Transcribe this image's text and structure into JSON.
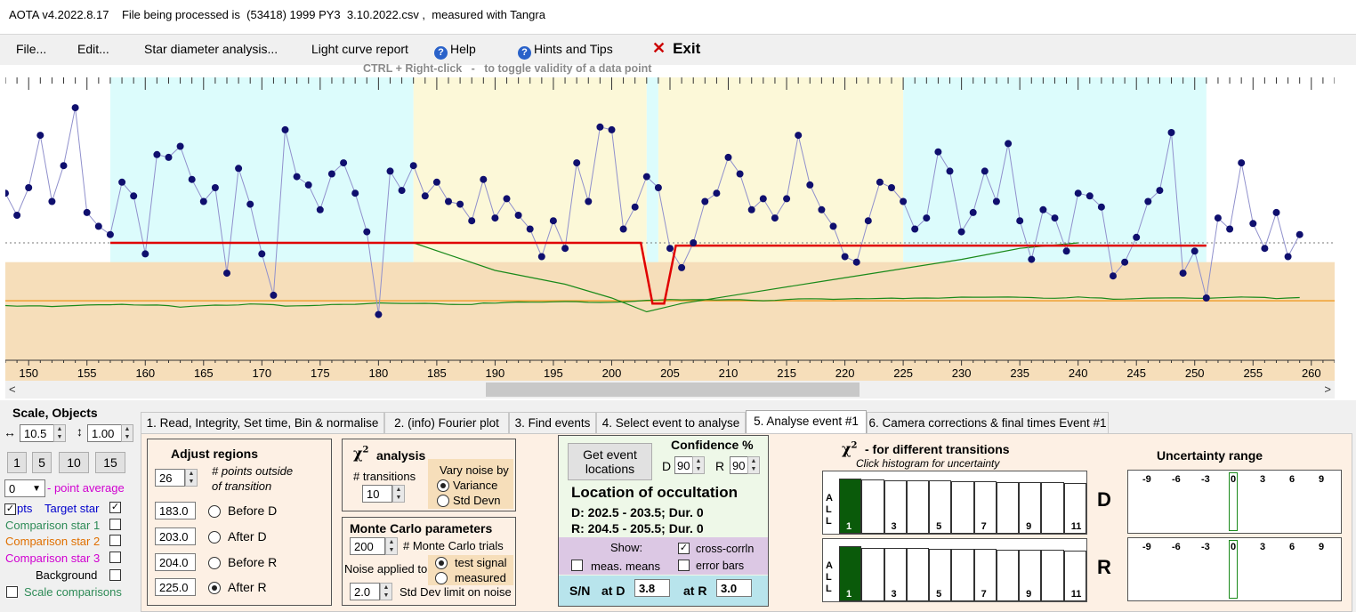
{
  "title": "AOTA v4.2022.8.17    File being processed is  (53418) 1999 PY3  3.10.2022.csv ,  measured with Tangra",
  "menu": {
    "file": "File...",
    "edit": "Edit...",
    "star_diameter": "Star diameter analysis...",
    "light_curve": "Light curve report",
    "help": "Help",
    "hints": "Hints and Tips",
    "exit": "Exit",
    "help_icon": "question-circle-icon",
    "exit_icon": "close-x-icon"
  },
  "hint": "CTRL + Right-click   -   to toggle validity of a data point",
  "chart_data": {
    "type": "scatter",
    "x_range": [
      148,
      262
    ],
    "x_ticks": [
      "150",
      "155",
      "160",
      "165",
      "170",
      "175",
      "180",
      "185",
      "190",
      "195",
      "200",
      "205",
      "210",
      "215",
      "220",
      "225",
      "230",
      "235",
      "240",
      "245",
      "250",
      "255",
      "260"
    ],
    "points_x_start": 148,
    "points_y": [
      58,
      50,
      60,
      79,
      55,
      68,
      89,
      51,
      46,
      43,
      62,
      57,
      36,
      72,
      71,
      75,
      63,
      55,
      60,
      29,
      67,
      54,
      36,
      21,
      81,
      64,
      61,
      52,
      65,
      69,
      58,
      44,
      14,
      66,
      59,
      68,
      57,
      62,
      55,
      54,
      48,
      63,
      49,
      56,
      50,
      45,
      35,
      48,
      38,
      69,
      55,
      82,
      81,
      45,
      53,
      64,
      60,
      38,
      31,
      40,
      55,
      58,
      71,
      65,
      52,
      56,
      49,
      56,
      79,
      61,
      52,
      46,
      35,
      33,
      48,
      62,
      60,
      55,
      45,
      49,
      73,
      66,
      44,
      51,
      66,
      55,
      76,
      48,
      34,
      52,
      49,
      37,
      58,
      57,
      53,
      28,
      33,
      42,
      55,
      59,
      80,
      29,
      37,
      20,
      49,
      45,
      69,
      47,
      38,
      51,
      35,
      43
    ],
    "baseline": 40,
    "bg_low": 22,
    "bg_high": 40,
    "y_display_max": 100,
    "target_colors": {
      "point": "#0f0f6e",
      "line": "#9090cc"
    },
    "model": {
      "color": "#e00000",
      "baseline": 40,
      "bottom": 18,
      "d_start": 202.5,
      "d_end": 203.5,
      "r_start": 204.5,
      "r_end": 205.5,
      "d_level": 40,
      "r_level": 39
    },
    "regions": {
      "before_d": [
        157,
        183
      ],
      "after_d": [
        183,
        203
      ],
      "before_r": [
        204,
        225
      ],
      "after_r": [
        225,
        251
      ]
    },
    "region_colors": {
      "blue": "#dcfcfc",
      "yellow": "#fcf8d8",
      "tan": "#f6deba",
      "orange_line": "#f0a030"
    }
  },
  "scale": {
    "title": "Scale,  Objects",
    "x_label": "10.5",
    "y_label": "1.00",
    "buttons": [
      "1",
      "5",
      "10",
      "15"
    ],
    "point_avg": "0",
    "point_avg_label": "- point average",
    "pts_label": "pts",
    "target_star": "Target star",
    "comp1": "Comparison star 1",
    "comp2": "Comparison star 2",
    "comp3": "Comparison star 3",
    "background": "Background",
    "scale_comparisons": "Scale comparisons",
    "colors": {
      "target": "#0000cc",
      "comp1": "#2e8b57",
      "comp2": "#e07000",
      "comp3": "#d000d0"
    }
  },
  "tabs": [
    "1.  Read, Integrity, Set time, Bin & normalise",
    "2. (info)  Fourier plot",
    "3. Find events",
    "4. Select event to analyse",
    "5. Analyse event #1",
    "6. Camera corrections & final times Event #1"
  ],
  "adjust": {
    "title": "Adjust regions",
    "points_value": "26",
    "points_label_1": "# points outside",
    "points_label_2": "of transition",
    "before_d_val": "183.0",
    "after_d_val": "203.0",
    "before_r_val": "204.0",
    "after_r_val": "225.0",
    "before_d": "Before D",
    "after_d": "After D",
    "before_r": "Before R",
    "after_r": "After R"
  },
  "chi2": {
    "title": "analysis",
    "transitions_label": "# transitions",
    "transitions_value": "10",
    "vary_label": "Vary noise by",
    "variance": "Variance",
    "std_devn": "Std Devn"
  },
  "monte_carlo": {
    "title": "Monte Carlo parameters",
    "trials_value": "200",
    "trials_label": "# Monte Carlo trials",
    "noise_applied": "Noise applied to",
    "test_signal": "test signal",
    "measured": "measured",
    "std_value": "2.0",
    "std_label": "Std Dev limit on noise"
  },
  "location": {
    "get_btn": "Get event locations",
    "confidence_title": "Confidence %",
    "d_label": "D",
    "d_value": "90",
    "r_label": "R",
    "r_value": "90",
    "loc_title": "Location of occultation",
    "d_line": "D: 202.5 - 203.5;  Dur. 0",
    "r_line": "R: 204.5 - 205.5;  Dur. 0",
    "show": "Show:",
    "cross_corr": "cross-corrln",
    "meas_means": "meas. means",
    "error_bars": "error bars",
    "sn_label": "S/N",
    "at_d": "at D",
    "sn_d": "3.8",
    "at_r": "at R",
    "sn_r": "3.0"
  },
  "chi_hist": {
    "title": "- for different transitions",
    "subtitle": "Click histogram for uncertainty",
    "all_labels": [
      "A",
      "L",
      "L"
    ],
    "bar_labels": [
      "1",
      "3",
      "5",
      "7",
      "9",
      "11"
    ],
    "d_bars": [
      100,
      98,
      97,
      96,
      96,
      95,
      95,
      94,
      94,
      93,
      92
    ],
    "r_bars": [
      100,
      97,
      96,
      96,
      95,
      95,
      95,
      94,
      94,
      93,
      92
    ],
    "d_label": "D",
    "r_label": "R"
  },
  "uncertainty": {
    "title": "Uncertainty range",
    "ticks": [
      "-9",
      "-6",
      "-3",
      "0",
      "3",
      "6",
      "9"
    ]
  }
}
